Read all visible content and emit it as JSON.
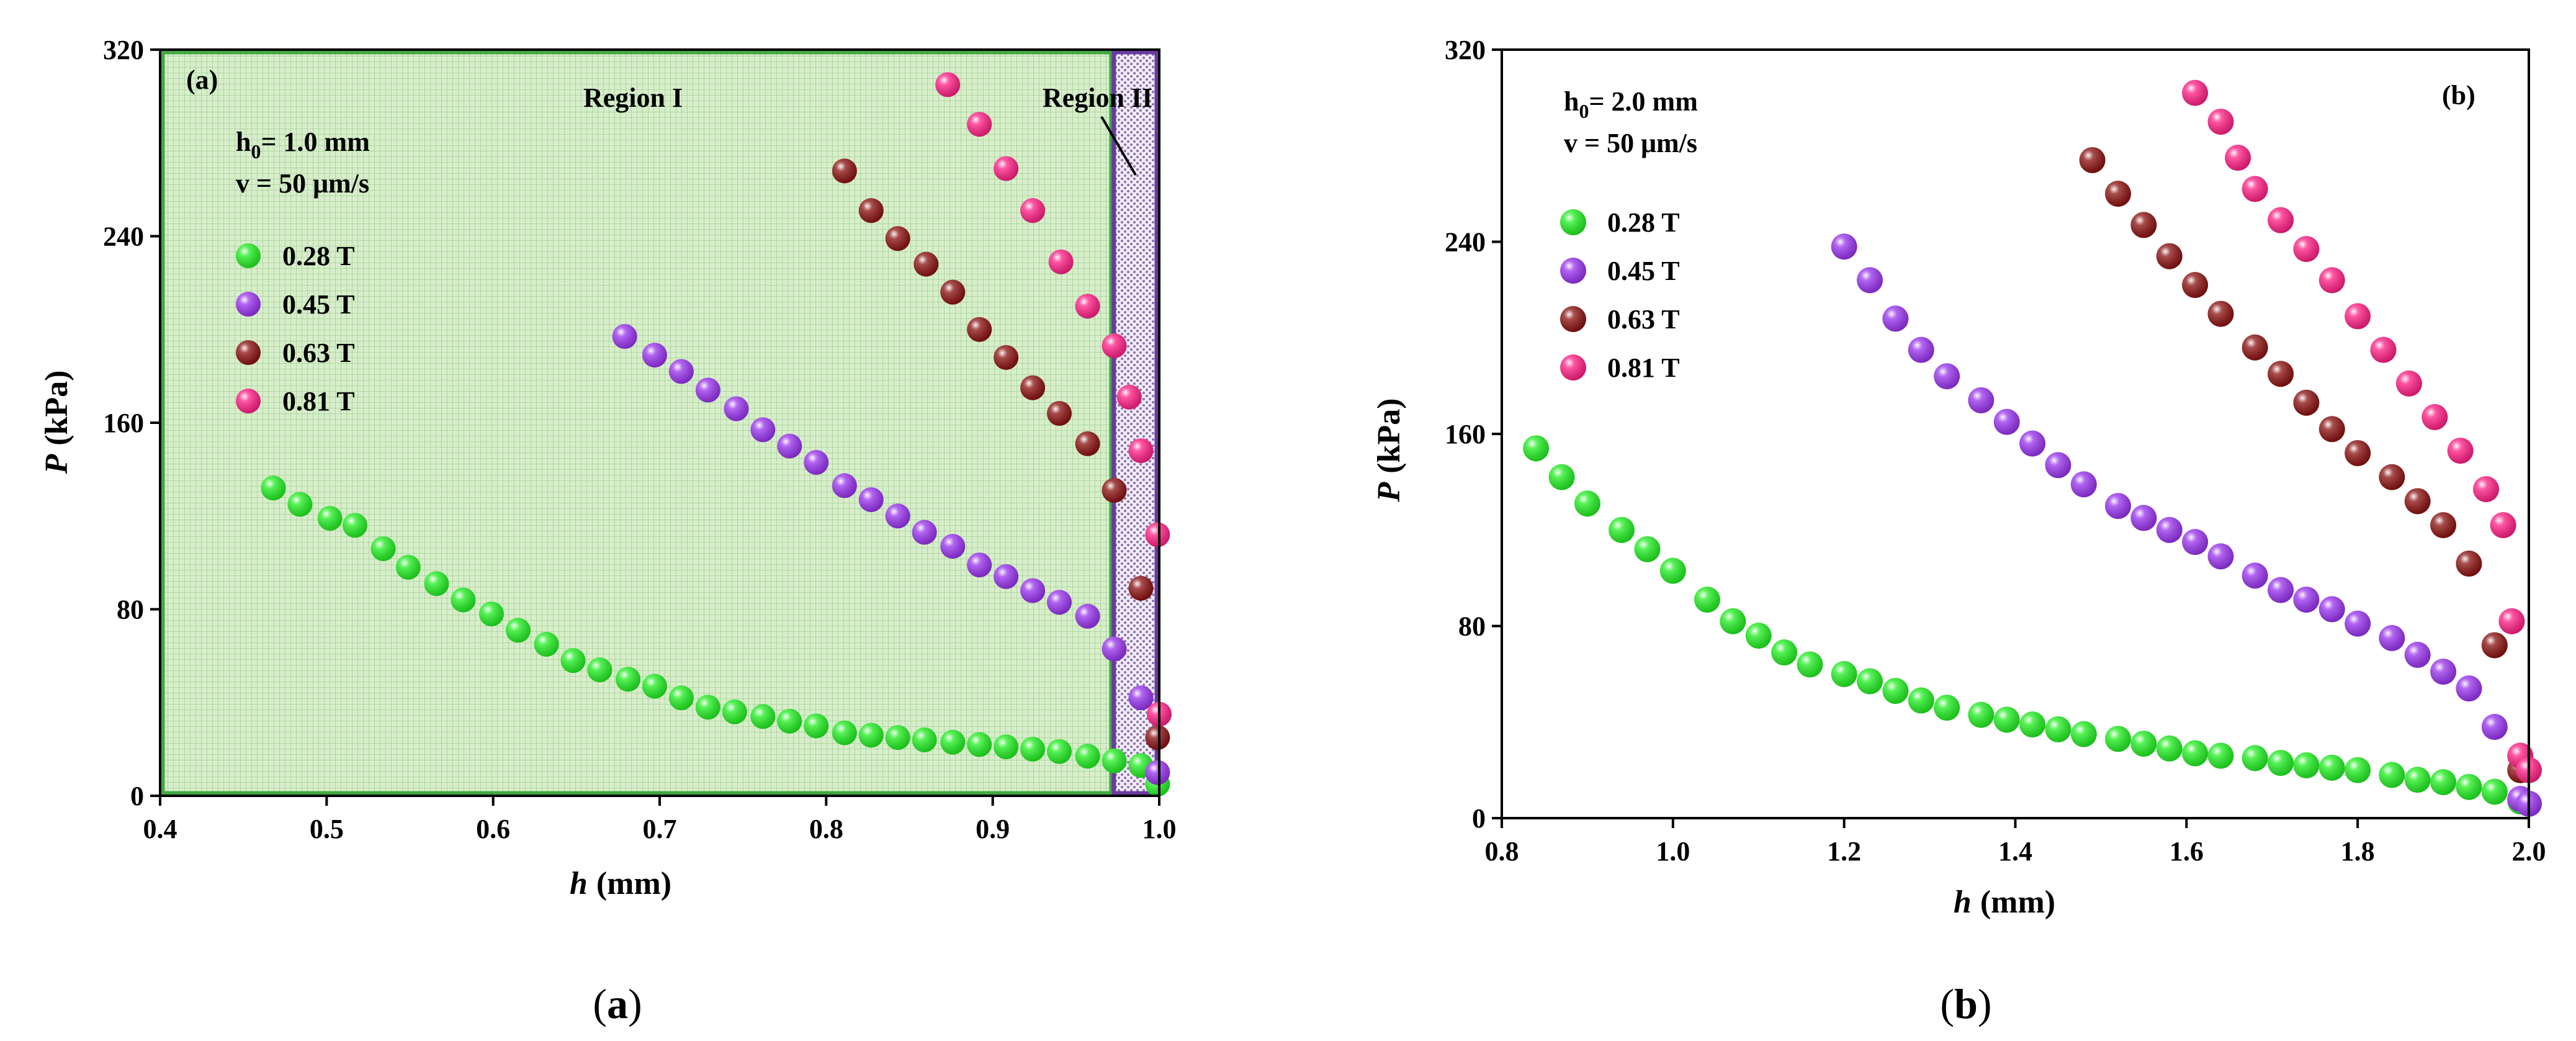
{
  "panels": [
    {
      "id": "a",
      "panel_tag": "(a)",
      "caption": {
        "open": "(",
        "letter": "a",
        "close": ")"
      },
      "ylabel_var": "P",
      "ylabel_unit": "(kPa)",
      "xlabel_var": "h",
      "xlabel_unit": "(mm)",
      "param_h0_prefix": "h",
      "param_h0_sub": "0",
      "param_h0_value": "= 1.0 mm",
      "param_v": "v = 50 μm/s",
      "region1_label": "Region I",
      "region2_label": "Region II",
      "xticks": [
        "0.4",
        "0.5",
        "0.6",
        "0.7",
        "0.8",
        "0.9",
        "1.0"
      ],
      "yticks": [
        "0",
        "80",
        "160",
        "240",
        "320"
      ]
    },
    {
      "id": "b",
      "panel_tag": "(b)",
      "caption": {
        "open": "(",
        "letter": "b",
        "close": ")"
      },
      "ylabel_var": "P",
      "ylabel_unit": "(kPa)",
      "xlabel_var": "h",
      "xlabel_unit": "(mm)",
      "param_h0_prefix": "h",
      "param_h0_sub": "0",
      "param_h0_value": "= 2.0 mm",
      "param_v": "v = 50 μm/s",
      "xticks": [
        "0.8",
        "1.0",
        "1.2",
        "1.4",
        "1.6",
        "1.8",
        "2.0"
      ],
      "yticks": [
        "0",
        "80",
        "160",
        "240",
        "320"
      ]
    }
  ],
  "colors": {
    "s028": "#22ee22",
    "s045": "#9933ee",
    "s063": "#8b1111",
    "s081": "#ff1f85",
    "region1_fill": "#d6ecc8",
    "region1_border": "#43a843",
    "region2_fill": "#eae4f2",
    "region2_border": "#6a3aa0"
  },
  "chart_data": [
    {
      "type": "scatter",
      "panel": "a",
      "title": "",
      "xlabel": "h (mm)",
      "ylabel": "P (kPa)",
      "xlim": [
        0.4,
        1.0
      ],
      "ylim": [
        0,
        320
      ],
      "legend_position": "upper-left",
      "regions": [
        {
          "name": "Region I",
          "x_range": [
            0.4,
            0.972
          ]
        },
        {
          "name": "Region II",
          "x_range": [
            0.972,
            1.0
          ]
        }
      ],
      "series": [
        {
          "name": "0.28 T",
          "color_key": "s028",
          "x": [
            0.468,
            0.484,
            0.502,
            0.517,
            0.534,
            0.549,
            0.566,
            0.582,
            0.599,
            0.615,
            0.632,
            0.648,
            0.664,
            0.681,
            0.697,
            0.713,
            0.729,
            0.745,
            0.762,
            0.778,
            0.794,
            0.811,
            0.827,
            0.843,
            0.859,
            0.876,
            0.892,
            0.908,
            0.924,
            0.94,
            0.957,
            0.973,
            0.989,
            0.999
          ],
          "y": [
            132,
            125,
            119,
            116,
            106,
            98,
            91,
            84,
            78,
            71,
            65,
            58,
            54,
            50,
            47,
            42,
            38,
            36,
            34,
            32,
            30,
            27,
            26,
            25,
            24,
            23,
            22,
            21,
            20,
            19,
            17,
            15,
            13,
            5
          ]
        },
        {
          "name": "0.45 T",
          "color_key": "s045",
          "x": [
            0.679,
            0.697,
            0.713,
            0.729,
            0.746,
            0.762,
            0.778,
            0.794,
            0.811,
            0.827,
            0.843,
            0.859,
            0.876,
            0.892,
            0.908,
            0.924,
            0.94,
            0.957,
            0.973,
            0.989,
            0.999
          ],
          "y": [
            197,
            189,
            182,
            174,
            166,
            157,
            150,
            143,
            133,
            127,
            120,
            113,
            107,
            99,
            94,
            88,
            83,
            77,
            63,
            42,
            10
          ]
        },
        {
          "name": "0.63 T",
          "color_key": "s063",
          "x": [
            0.811,
            0.827,
            0.843,
            0.86,
            0.876,
            0.892,
            0.908,
            0.924,
            0.94,
            0.957,
            0.973,
            0.989,
            0.999
          ],
          "y": [
            268,
            251,
            239,
            228,
            216,
            200,
            188,
            175,
            164,
            151,
            131,
            89,
            25
          ]
        },
        {
          "name": "0.81 T",
          "color_key": "s081",
          "x": [
            0.873,
            0.892,
            0.908,
            0.924,
            0.941,
            0.957,
            0.973,
            0.982,
            0.989,
            0.999
          ],
          "y": [
            305,
            288,
            269,
            251,
            229,
            210,
            193,
            171,
            148,
            112
          ]
        },
        {
          "name": "",
          "color_key": "s081",
          "legend": false,
          "x": [
            1.0
          ],
          "y": [
            35
          ]
        }
      ]
    },
    {
      "type": "scatter",
      "panel": "b",
      "title": "",
      "xlabel": "h (mm)",
      "ylabel": "P (kPa)",
      "xlim": [
        0.8,
        2.0
      ],
      "ylim": [
        0,
        320
      ],
      "legend_position": "upper-left",
      "series": [
        {
          "name": "0.28 T",
          "color_key": "s028",
          "x": [
            0.84,
            0.87,
            0.9,
            0.94,
            0.97,
            1.0,
            1.04,
            1.07,
            1.1,
            1.13,
            1.16,
            1.2,
            1.23,
            1.26,
            1.29,
            1.32,
            1.36,
            1.39,
            1.42,
            1.45,
            1.48,
            1.52,
            1.55,
            1.58,
            1.61,
            1.64,
            1.68,
            1.71,
            1.74,
            1.77,
            1.8,
            1.84,
            1.87,
            1.9,
            1.93,
            1.96,
            1.99
          ],
          "y": [
            154,
            142,
            131,
            120,
            112,
            103,
            91,
            82,
            76,
            69,
            64,
            60,
            57,
            53,
            49,
            46,
            43,
            41,
            39,
            37,
            35,
            33,
            31,
            29,
            27,
            26,
            25,
            23,
            22,
            21,
            20,
            18,
            16,
            15,
            13,
            11,
            7
          ]
        },
        {
          "name": "0.45 T",
          "color_key": "s045",
          "x": [
            1.2,
            1.23,
            1.26,
            1.29,
            1.32,
            1.36,
            1.39,
            1.42,
            1.45,
            1.48,
            1.52,
            1.55,
            1.58,
            1.61,
            1.64,
            1.68,
            1.71,
            1.74,
            1.77,
            1.8,
            1.84,
            1.87,
            1.9,
            1.93,
            1.96,
            1.99,
            2.0
          ],
          "y": [
            238,
            224,
            208,
            195,
            184,
            174,
            165,
            156,
            147,
            139,
            130,
            125,
            120,
            115,
            109,
            101,
            95,
            91,
            87,
            81,
            75,
            68,
            61,
            54,
            38,
            8,
            6
          ]
        },
        {
          "name": "0.63 T",
          "color_key": "s063",
          "x": [
            1.49,
            1.52,
            1.55,
            1.58,
            1.61,
            1.64,
            1.68,
            1.71,
            1.74,
            1.77,
            1.8,
            1.84,
            1.87,
            1.9,
            1.93,
            1.96,
            1.99
          ],
          "y": [
            274,
            260,
            247,
            234,
            222,
            210,
            196,
            185,
            173,
            162,
            152,
            142,
            132,
            122,
            106,
            72,
            20
          ]
        },
        {
          "name": "0.81 T",
          "color_key": "s081",
          "x": [
            1.61,
            1.64,
            1.66,
            1.68,
            1.71,
            1.74,
            1.77,
            1.8,
            1.83,
            1.86,
            1.89,
            1.92,
            1.95,
            1.97,
            1.98,
            1.99,
            2.0
          ],
          "y": [
            302,
            290,
            275,
            262,
            249,
            237,
            224,
            209,
            195,
            181,
            167,
            153,
            137,
            122,
            82,
            26,
            20
          ]
        }
      ]
    }
  ]
}
